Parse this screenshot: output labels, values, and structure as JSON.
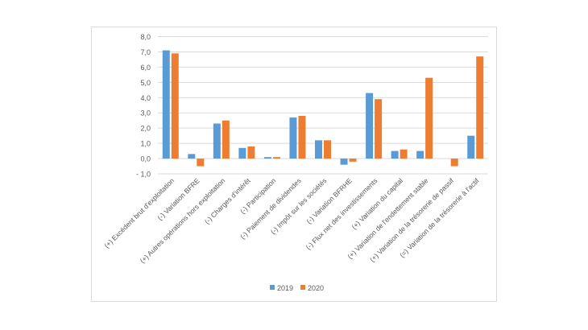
{
  "chart_data": {
    "type": "bar",
    "categories": [
      "(+) Excédent brut d'exploitation",
      "(-) Variation BFRE",
      "(+) Autres opérations hors exploitation",
      "(-) Charges d'intérêt",
      "(-) Participation",
      "(-) Paiement de dividendes",
      "(-) Impôt sur les sociétés",
      "(-) Variation BFRHE",
      "(-) Flux net des investissements",
      "(+) Variation du  capital",
      "(+) Variation de l'endettement stable",
      "(+) Variation de la trésorerie de passif",
      "(=) Variation de la trésorerie à l'actif"
    ],
    "series": [
      {
        "name": "2019",
        "color": "#5b9bd5",
        "values": [
          7.1,
          0.3,
          2.3,
          0.7,
          0.1,
          2.7,
          1.2,
          -0.4,
          4.3,
          0.5,
          0.5,
          0.0,
          1.5
        ]
      },
      {
        "name": "2020",
        "color": "#ed7d31",
        "values": [
          6.9,
          -0.5,
          2.5,
          0.8,
          0.1,
          2.8,
          1.2,
          -0.2,
          3.9,
          0.6,
          5.3,
          -0.5,
          6.7
        ]
      }
    ],
    "ylim": [
      -1,
      8
    ],
    "yticks": [
      "- 1,0",
      "0,0",
      "1,0",
      "2,0",
      "3,0",
      "4,0",
      "5,0",
      "6,0",
      "7,0",
      "8,0"
    ],
    "grid": true,
    "legend": "bottom",
    "title": "",
    "xlabel": "",
    "ylabel": ""
  }
}
